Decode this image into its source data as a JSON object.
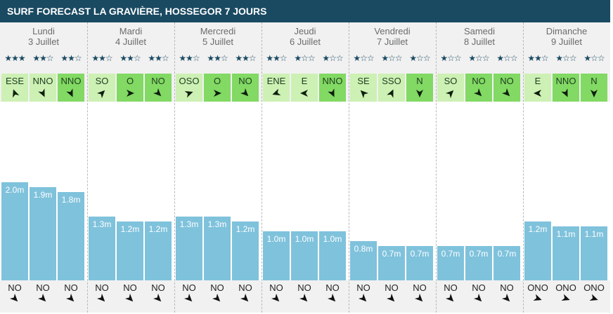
{
  "title": "SURF FORECAST LA GRAVIÈRE, HOSSEGOR 7 JOURS",
  "colors": {
    "header_bg": "#1a4a62",
    "wave_bar": "#7fc2dc",
    "wind_light": "#cdf0b4",
    "wind_strong": "#82d963",
    "star": "#1a4a62"
  },
  "icons": [
    "star-icon",
    "wind-arrow-icon",
    "swell-arrow-icon"
  ],
  "chart_data": {
    "type": "bar",
    "title": "SURF FORECAST LA GRAVIÈRE, HOSSEGOR 7 JOURS",
    "unit": "m",
    "ylim": [
      0,
      2.0
    ],
    "days": [
      {
        "day": "Lundi",
        "date": "3 Juillet",
        "slots": [
          {
            "wave": 2.0,
            "label": "2.0m",
            "stars": 3,
            "wind": "ESE",
            "wind_strength": "light",
            "wind_angle": 340,
            "swell": "NO",
            "swell_angle": 135
          },
          {
            "wave": 1.9,
            "label": "1.9m",
            "stars": 2,
            "wind": "NNO",
            "wind_strength": "light",
            "wind_angle": 155,
            "swell": "NO",
            "swell_angle": 135
          },
          {
            "wave": 1.8,
            "label": "1.8m",
            "stars": 2,
            "wind": "NNO",
            "wind_strength": "strong",
            "wind_angle": 155,
            "swell": "NO",
            "swell_angle": 135
          }
        ]
      },
      {
        "day": "Mardi",
        "date": "4 Juillet",
        "slots": [
          {
            "wave": 1.3,
            "label": "1.3m",
            "stars": 2,
            "wind": "SO",
            "wind_strength": "light",
            "wind_angle": 45,
            "swell": "NO",
            "swell_angle": 135
          },
          {
            "wave": 1.2,
            "label": "1.2m",
            "stars": 2,
            "wind": "O",
            "wind_strength": "strong",
            "wind_angle": 90,
            "swell": "NO",
            "swell_angle": 135
          },
          {
            "wave": 1.2,
            "label": "1.2m",
            "stars": 2,
            "wind": "NO",
            "wind_strength": "strong",
            "wind_angle": 135,
            "swell": "NO",
            "swell_angle": 135
          }
        ]
      },
      {
        "day": "Mercredi",
        "date": "5 Juillet",
        "slots": [
          {
            "wave": 1.3,
            "label": "1.3m",
            "stars": 2,
            "wind": "OSO",
            "wind_strength": "light",
            "wind_angle": 70,
            "swell": "NO",
            "swell_angle": 135
          },
          {
            "wave": 1.3,
            "label": "1.3m",
            "stars": 2,
            "wind": "O",
            "wind_strength": "strong",
            "wind_angle": 90,
            "swell": "NO",
            "swell_angle": 135
          },
          {
            "wave": 1.2,
            "label": "1.2m",
            "stars": 2,
            "wind": "NO",
            "wind_strength": "strong",
            "wind_angle": 135,
            "swell": "NO",
            "swell_angle": 135
          }
        ]
      },
      {
        "day": "Jeudi",
        "date": "6 Juillet",
        "slots": [
          {
            "wave": 1.0,
            "label": "1.0m",
            "stars": 2,
            "wind": "ENE",
            "wind_strength": "light",
            "wind_angle": 250,
            "swell": "NO",
            "swell_angle": 135
          },
          {
            "wave": 1.0,
            "label": "1.0m",
            "stars": 1,
            "wind": "E",
            "wind_strength": "light",
            "wind_angle": 270,
            "swell": "NO",
            "swell_angle": 135
          },
          {
            "wave": 1.0,
            "label": "1.0m",
            "stars": 1,
            "wind": "NNO",
            "wind_strength": "strong",
            "wind_angle": 155,
            "swell": "NO",
            "swell_angle": 135
          }
        ]
      },
      {
        "day": "Vendredi",
        "date": "7 Juillet",
        "slots": [
          {
            "wave": 0.8,
            "label": "0.8m",
            "stars": 1,
            "wind": "SE",
            "wind_strength": "light",
            "wind_angle": 315,
            "swell": "NO",
            "swell_angle": 135
          },
          {
            "wave": 0.7,
            "label": "0.7m",
            "stars": 1,
            "wind": "SSO",
            "wind_strength": "light",
            "wind_angle": 25,
            "swell": "NO",
            "swell_angle": 135
          },
          {
            "wave": 0.7,
            "label": "0.7m",
            "stars": 1,
            "wind": "N",
            "wind_strength": "strong",
            "wind_angle": 180,
            "swell": "NO",
            "swell_angle": 135
          }
        ]
      },
      {
        "day": "Samedi",
        "date": "8 Juillet",
        "slots": [
          {
            "wave": 0.7,
            "label": "0.7m",
            "stars": 1,
            "wind": "SO",
            "wind_strength": "light",
            "wind_angle": 45,
            "swell": "NO",
            "swell_angle": 135
          },
          {
            "wave": 0.7,
            "label": "0.7m",
            "stars": 1,
            "wind": "NO",
            "wind_strength": "strong",
            "wind_angle": 135,
            "swell": "NO",
            "swell_angle": 135
          },
          {
            "wave": 0.7,
            "label": "0.7m",
            "stars": 1,
            "wind": "NO",
            "wind_strength": "strong",
            "wind_angle": 135,
            "swell": "NO",
            "swell_angle": 135
          }
        ]
      },
      {
        "day": "Dimanche",
        "date": "9 Juillet",
        "slots": [
          {
            "wave": 1.2,
            "label": "1.2m",
            "stars": 2,
            "wind": "E",
            "wind_strength": "light",
            "wind_angle": 270,
            "swell": "ONO",
            "swell_angle": 110
          },
          {
            "wave": 1.1,
            "label": "1.1m",
            "stars": 1,
            "wind": "NNO",
            "wind_strength": "strong",
            "wind_angle": 155,
            "swell": "ONO",
            "swell_angle": 110
          },
          {
            "wave": 1.1,
            "label": "1.1m",
            "stars": 1,
            "wind": "N",
            "wind_strength": "strong",
            "wind_angle": 180,
            "swell": "ONO",
            "swell_angle": 110
          }
        ]
      }
    ]
  }
}
